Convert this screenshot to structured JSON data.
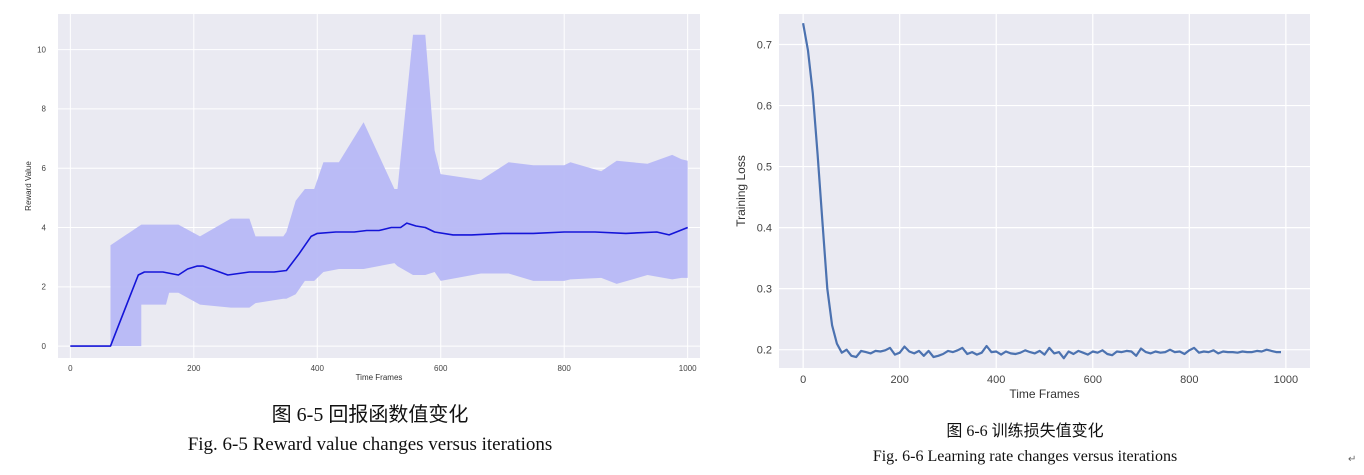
{
  "chart_data": [
    {
      "type": "line",
      "xlabel": "Time Frames",
      "ylabel": "Reward Value",
      "xlim": [
        -20,
        1020
      ],
      "ylim": [
        -0.4,
        11.2
      ],
      "xticks": [
        0,
        200,
        400,
        600,
        800,
        1000
      ],
      "yticks": [
        0,
        2,
        4,
        6,
        8,
        10
      ],
      "grid": true,
      "colors": {
        "line": "#1414d8",
        "band": "#b7b8f5",
        "background": "#eaeaf2",
        "grid": "#ffffff"
      },
      "series": [
        {
          "x": [
            0,
            65,
            80,
            95,
            110,
            120,
            150,
            175,
            190,
            205,
            215,
            235,
            255,
            290,
            330,
            350,
            370,
            390,
            400,
            430,
            460,
            480,
            500,
            520,
            535,
            545,
            560,
            575,
            590,
            620,
            650,
            700,
            750,
            800,
            850,
            900,
            950,
            970,
            1000
          ],
          "values": [
            0,
            0,
            0.8,
            1.6,
            2.4,
            2.5,
            2.5,
            2.4,
            2.6,
            2.7,
            2.7,
            2.55,
            2.4,
            2.5,
            2.5,
            2.55,
            3.1,
            3.7,
            3.8,
            3.85,
            3.85,
            3.9,
            3.9,
            4.0,
            4.0,
            4.15,
            4.05,
            4.0,
            3.85,
            3.75,
            3.75,
            3.8,
            3.8,
            3.85,
            3.85,
            3.8,
            3.85,
            3.75,
            4.0
          ]
        }
      ],
      "band": {
        "x": [
          65,
          115,
          115,
          155,
          160,
          175,
          210,
          260,
          290,
          300,
          345,
          350,
          365,
          380,
          395,
          410,
          435,
          475,
          525,
          530,
          555,
          575,
          590,
          600,
          665,
          710,
          750,
          800,
          810,
          860,
          885,
          935,
          975,
          990,
          1000
        ],
        "upper": [
          3.4,
          4.1,
          4.1,
          4.1,
          4.1,
          4.1,
          3.7,
          4.3,
          4.3,
          3.7,
          3.7,
          3.85,
          4.9,
          5.3,
          5.3,
          6.2,
          6.2,
          7.55,
          5.3,
          5.3,
          10.5,
          10.5,
          6.6,
          5.8,
          5.6,
          6.2,
          6.1,
          6.1,
          6.2,
          5.9,
          6.25,
          6.15,
          6.45,
          6.3,
          6.25
        ],
        "lower": [
          0.0,
          0.0,
          1.4,
          1.4,
          1.8,
          1.8,
          1.4,
          1.3,
          1.3,
          1.45,
          1.6,
          1.6,
          1.75,
          2.2,
          2.2,
          2.5,
          2.6,
          2.6,
          2.8,
          2.7,
          2.4,
          2.4,
          2.5,
          2.2,
          2.45,
          2.45,
          2.2,
          2.2,
          2.25,
          2.3,
          2.1,
          2.4,
          2.25,
          2.3,
          2.3
        ]
      }
    },
    {
      "type": "line",
      "xlabel": "Time Frames",
      "ylabel": "Training Loss",
      "xlim": [
        -50,
        1050
      ],
      "ylim": [
        0.17,
        0.75
      ],
      "xticks": [
        0,
        200,
        400,
        600,
        800,
        1000
      ],
      "yticks": [
        0.2,
        0.3,
        0.4,
        0.5,
        0.6,
        0.7
      ],
      "grid": true,
      "colors": {
        "line": "#4c72b0",
        "background": "#eaeaf2",
        "grid": "#ffffff"
      },
      "series": [
        {
          "x": [
            0,
            10,
            20,
            30,
            40,
            50,
            60,
            70,
            80,
            90,
            100,
            110,
            120,
            130,
            140,
            150,
            160,
            170,
            180,
            190,
            200,
            210,
            220,
            230,
            240,
            250,
            260,
            270,
            280,
            290,
            300,
            310,
            320,
            330,
            340,
            350,
            360,
            370,
            380,
            390,
            400,
            410,
            420,
            430,
            440,
            450,
            460,
            470,
            480,
            490,
            500,
            510,
            520,
            530,
            540,
            550,
            560,
            570,
            580,
            590,
            600,
            610,
            620,
            630,
            640,
            650,
            660,
            670,
            680,
            690,
            700,
            710,
            720,
            730,
            740,
            750,
            760,
            770,
            780,
            790,
            800,
            810,
            820,
            830,
            840,
            850,
            860,
            870,
            880,
            890,
            900,
            910,
            920,
            930,
            940,
            950,
            960,
            970,
            980,
            990
          ],
          "values": [
            0.735,
            0.69,
            0.62,
            0.52,
            0.41,
            0.3,
            0.24,
            0.21,
            0.195,
            0.2,
            0.19,
            0.188,
            0.198,
            0.196,
            0.194,
            0.198,
            0.197,
            0.199,
            0.203,
            0.192,
            0.195,
            0.205,
            0.197,
            0.194,
            0.198,
            0.19,
            0.198,
            0.188,
            0.19,
            0.193,
            0.198,
            0.196,
            0.199,
            0.203,
            0.193,
            0.196,
            0.192,
            0.195,
            0.206,
            0.196,
            0.197,
            0.192,
            0.197,
            0.194,
            0.193,
            0.195,
            0.199,
            0.196,
            0.194,
            0.198,
            0.192,
            0.203,
            0.194,
            0.196,
            0.186,
            0.197,
            0.193,
            0.198,
            0.195,
            0.192,
            0.197,
            0.195,
            0.199,
            0.193,
            0.191,
            0.197,
            0.196,
            0.198,
            0.197,
            0.19,
            0.202,
            0.196,
            0.194,
            0.197,
            0.195,
            0.196,
            0.2,
            0.196,
            0.197,
            0.193,
            0.199,
            0.203,
            0.195,
            0.197,
            0.196,
            0.199,
            0.194,
            0.197,
            0.196,
            0.196,
            0.195,
            0.197,
            0.196,
            0.196,
            0.198,
            0.197,
            0.2,
            0.198,
            0.196,
            0.196
          ]
        }
      ]
    }
  ],
  "captions": {
    "left_cn": "图 6-5 回报函数值变化",
    "left_en": "Fig. 6-5 Reward value changes versus iterations",
    "right_cn": "图 6-6  训练损失值变化",
    "right_en": "Fig. 6-6 Learning rate changes versus iterations"
  },
  "paragraph_mark": "↵"
}
